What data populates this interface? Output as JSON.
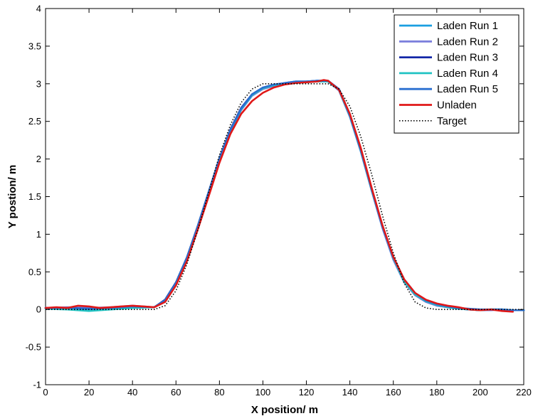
{
  "chart_data": {
    "type": "line",
    "xlabel": "X position/ m",
    "ylabel": "Y postion/ m",
    "xlim": [
      0,
      220
    ],
    "ylim": [
      -1,
      4
    ],
    "xticks": [
      "0",
      "20",
      "40",
      "60",
      "80",
      "100",
      "120",
      "140",
      "160",
      "180",
      "200",
      "220"
    ],
    "yticks": [
      "-1",
      "-0.5",
      "0",
      "0.5",
      "1",
      "1.5",
      "2",
      "2.5",
      "3",
      "3.5",
      "4"
    ],
    "grid": false,
    "legend_position": "top-right",
    "series": [
      {
        "name": "Laden Run 1",
        "color": "#1a9fe0",
        "style": "solid",
        "x": [
          0,
          10,
          20,
          30,
          40,
          50,
          55,
          60,
          65,
          70,
          75,
          80,
          85,
          90,
          95,
          100,
          105,
          110,
          115,
          120,
          125,
          130,
          135,
          140,
          145,
          150,
          155,
          160,
          165,
          170,
          175,
          180,
          185,
          190,
          195,
          200,
          205,
          210,
          215,
          220
        ],
        "y": [
          0.02,
          0.02,
          0.0,
          0.02,
          0.04,
          0.03,
          0.12,
          0.35,
          0.68,
          1.1,
          1.55,
          2.0,
          2.38,
          2.67,
          2.85,
          2.94,
          2.98,
          3.0,
          3.03,
          3.03,
          3.04,
          3.04,
          2.92,
          2.58,
          2.12,
          1.6,
          1.1,
          0.68,
          0.37,
          0.2,
          0.11,
          0.06,
          0.03,
          0.01,
          0.0,
          -0.01,
          0.0,
          0.0,
          -0.01,
          -0.01
        ]
      },
      {
        "name": "Laden Run 2",
        "color": "#7b7fdc",
        "style": "solid",
        "x": [
          0,
          10,
          20,
          30,
          40,
          50,
          55,
          60,
          65,
          70,
          75,
          80,
          85,
          90,
          95,
          100,
          105,
          110,
          115,
          120,
          125,
          130,
          135,
          140,
          145,
          150,
          155,
          160,
          165,
          170,
          175,
          180,
          185,
          190,
          195,
          200,
          205,
          210,
          215,
          220
        ],
        "y": [
          0.02,
          0.03,
          0.02,
          0.03,
          0.05,
          0.03,
          0.12,
          0.34,
          0.67,
          1.08,
          1.53,
          1.98,
          2.36,
          2.65,
          2.84,
          2.93,
          2.97,
          3.0,
          3.02,
          3.03,
          3.03,
          3.03,
          2.91,
          2.56,
          2.1,
          1.58,
          1.08,
          0.66,
          0.36,
          0.19,
          0.1,
          0.05,
          0.03,
          0.01,
          0.0,
          -0.01,
          -0.01,
          0.0,
          -0.01,
          -0.01
        ]
      },
      {
        "name": "Laden Run 3",
        "color": "#1428a8",
        "style": "solid",
        "x": [
          0,
          10,
          20,
          30,
          40,
          50,
          55,
          60,
          65,
          70,
          75,
          80,
          85,
          90,
          95,
          100,
          105,
          110,
          115,
          120,
          125,
          130,
          135,
          140,
          145,
          150,
          155,
          160,
          165,
          170,
          175,
          180,
          185,
          190,
          195,
          200,
          205,
          210,
          215,
          220
        ],
        "y": [
          0.02,
          0.02,
          0.01,
          0.02,
          0.04,
          0.03,
          0.13,
          0.36,
          0.69,
          1.11,
          1.56,
          2.01,
          2.39,
          2.68,
          2.86,
          2.95,
          2.98,
          3.01,
          3.03,
          3.03,
          3.04,
          3.03,
          2.93,
          2.59,
          2.13,
          1.61,
          1.11,
          0.69,
          0.38,
          0.2,
          0.11,
          0.06,
          0.03,
          0.01,
          0.0,
          -0.01,
          0.0,
          -0.01,
          -0.01,
          -0.01
        ]
      },
      {
        "name": "Laden Run 4",
        "color": "#22c3c3",
        "style": "solid",
        "x": [
          0,
          10,
          20,
          30,
          40,
          50,
          55,
          60,
          65,
          70,
          75,
          80,
          85,
          90,
          95,
          100,
          105,
          110,
          115,
          120,
          125,
          130,
          135,
          140,
          145,
          150,
          155,
          160,
          165,
          170,
          175,
          180,
          185,
          190,
          195,
          200,
          205,
          210,
          215,
          220
        ],
        "y": [
          0.01,
          0.0,
          -0.02,
          0.0,
          0.02,
          0.03,
          0.12,
          0.35,
          0.68,
          1.1,
          1.55,
          2.0,
          2.37,
          2.66,
          2.85,
          2.94,
          2.98,
          3.0,
          3.02,
          3.02,
          3.03,
          3.03,
          2.92,
          2.57,
          2.11,
          1.59,
          1.1,
          0.68,
          0.37,
          0.2,
          0.11,
          0.06,
          0.03,
          0.01,
          0.0,
          -0.01,
          0.0,
          0.0,
          -0.01,
          -0.01
        ]
      },
      {
        "name": "Laden Run 5",
        "color": "#2a6fd0",
        "style": "solid",
        "x": [
          0,
          10,
          20,
          30,
          40,
          50,
          55,
          60,
          65,
          70,
          75,
          80,
          85,
          90,
          95,
          100,
          105,
          110,
          115,
          120,
          125,
          130,
          135,
          140,
          145,
          150,
          155,
          160,
          165,
          170,
          175,
          180,
          185,
          190,
          195,
          200,
          205,
          210,
          215,
          220
        ],
        "y": [
          0.02,
          0.02,
          0.01,
          0.02,
          0.04,
          0.03,
          0.12,
          0.35,
          0.68,
          1.1,
          1.55,
          2.0,
          2.38,
          2.67,
          2.86,
          2.95,
          2.99,
          3.01,
          3.03,
          3.03,
          3.04,
          3.04,
          2.93,
          2.58,
          2.12,
          1.6,
          1.1,
          0.69,
          0.4,
          0.22,
          0.12,
          0.07,
          0.04,
          0.02,
          0.01,
          0.0,
          0.0,
          0.0,
          -0.01,
          -0.01
        ]
      },
      {
        "name": "Unladen",
        "color": "#e01818",
        "style": "solid",
        "x": [
          0,
          5,
          10,
          15,
          20,
          25,
          30,
          35,
          40,
          45,
          50,
          55,
          60,
          65,
          70,
          75,
          80,
          85,
          90,
          95,
          100,
          105,
          110,
          115,
          120,
          125,
          128,
          130,
          135,
          140,
          145,
          150,
          155,
          160,
          165,
          170,
          175,
          180,
          185,
          190,
          195,
          200,
          205,
          210,
          215
        ],
        "y": [
          0.02,
          0.03,
          0.02,
          0.05,
          0.04,
          0.02,
          0.03,
          0.04,
          0.05,
          0.04,
          0.03,
          0.1,
          0.32,
          0.64,
          1.06,
          1.5,
          1.95,
          2.33,
          2.6,
          2.77,
          2.88,
          2.95,
          2.99,
          3.01,
          3.02,
          3.03,
          3.05,
          3.04,
          2.92,
          2.6,
          2.15,
          1.62,
          1.12,
          0.7,
          0.4,
          0.22,
          0.13,
          0.08,
          0.05,
          0.03,
          0.0,
          -0.01,
          0.0,
          -0.02,
          -0.03
        ]
      },
      {
        "name": "Target",
        "color": "#000000",
        "style": "dotted",
        "x": [
          0,
          50,
          55,
          60,
          65,
          70,
          75,
          80,
          85,
          90,
          95,
          100,
          130,
          135,
          140,
          145,
          150,
          155,
          160,
          165,
          170,
          175,
          180,
          220
        ],
        "y": [
          0.0,
          0.0,
          0.05,
          0.25,
          0.6,
          1.05,
          1.55,
          2.05,
          2.45,
          2.75,
          2.93,
          3.0,
          3.0,
          2.93,
          2.7,
          2.3,
          1.8,
          1.25,
          0.75,
          0.35,
          0.1,
          0.02,
          0.0,
          0.0
        ]
      }
    ]
  }
}
